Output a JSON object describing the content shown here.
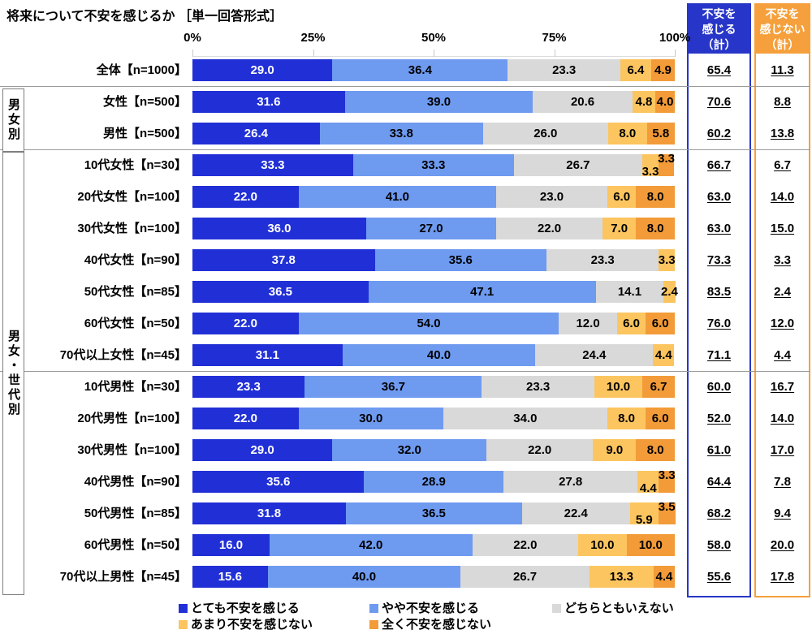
{
  "title": "将来について不安を感じるか ［単一回答形式］",
  "axis": {
    "ticks": [
      "0%",
      "25%",
      "50%",
      "75%",
      "100%"
    ]
  },
  "groups": [
    {
      "label": "男女別",
      "start_row": 1,
      "end_row": 2
    },
    {
      "label": "男女・世代別",
      "start_row": 3,
      "end_row": 16
    }
  ],
  "summary_columns": [
    {
      "header": "不安を\n感じる\n（計）",
      "color": "#2736c8",
      "key": "feel"
    },
    {
      "header": "不安を\n感じない\n（計）",
      "color": "#f5a03c",
      "key": "not_feel"
    }
  ],
  "legend": [
    {
      "label": "とても不安を感じる",
      "color": "#2130d6"
    },
    {
      "label": "やや不安を感じる",
      "color": "#6e9af0"
    },
    {
      "label": "どちらともいえない",
      "color": "#d9d9d9"
    },
    {
      "label": "あまり不安を感じない",
      "color": "#fcc55f"
    },
    {
      "label": "全く不安を感じない",
      "color": "#f29b38"
    }
  ],
  "chart_data": {
    "type": "bar",
    "stacked": true,
    "orientation": "horizontal",
    "unit": "%",
    "xlim": [
      0,
      100
    ],
    "x_ticks": [
      0,
      25,
      50,
      75,
      100
    ],
    "categories": [
      "全体【n=1000】",
      "女性【n=500】",
      "男性【n=500】",
      "10代女性【n=30】",
      "20代女性【n=100】",
      "30代女性【n=100】",
      "40代女性【n=90】",
      "50代女性【n=85】",
      "60代女性【n=50】",
      "70代以上女性【n=45】",
      "10代男性【n=30】",
      "20代男性【n=100】",
      "30代男性【n=100】",
      "40代男性【n=90】",
      "50代男性【n=85】",
      "60代男性【n=50】",
      "70代以上男性【n=45】"
    ],
    "series": [
      {
        "name": "とても不安を感じる",
        "color": "#2130d6",
        "label_color": "#ffffff",
        "values": [
          29.0,
          31.6,
          26.4,
          33.3,
          22.0,
          36.0,
          37.8,
          36.5,
          22.0,
          31.1,
          23.3,
          22.0,
          29.0,
          35.6,
          31.8,
          16.0,
          15.6
        ]
      },
      {
        "name": "やや不安を感じる",
        "color": "#6e9af0",
        "label_color": "#000000",
        "values": [
          36.4,
          39.0,
          33.8,
          33.3,
          41.0,
          27.0,
          35.6,
          47.1,
          54.0,
          40.0,
          36.7,
          30.0,
          32.0,
          28.9,
          36.5,
          42.0,
          40.0
        ]
      },
      {
        "name": "どちらともいえない",
        "color": "#d9d9d9",
        "label_color": "#000000",
        "values": [
          23.3,
          20.6,
          26.0,
          26.7,
          23.0,
          22.0,
          23.3,
          14.1,
          12.0,
          24.4,
          23.3,
          34.0,
          22.0,
          27.8,
          22.4,
          22.0,
          26.7
        ]
      },
      {
        "name": "あまり不安を感じない",
        "color": "#fcc55f",
        "label_color": "#000000",
        "values": [
          6.4,
          4.8,
          8.0,
          3.3,
          6.0,
          7.0,
          3.3,
          2.4,
          6.0,
          4.4,
          10.0,
          8.0,
          9.0,
          4.4,
          5.9,
          10.0,
          13.3
        ]
      },
      {
        "name": "全く不安を感じない",
        "color": "#f29b38",
        "label_color": "#000000",
        "values": [
          4.9,
          4.0,
          5.8,
          3.3,
          8.0,
          8.0,
          0,
          0,
          6.0,
          0,
          6.7,
          6.0,
          8.0,
          3.3,
          3.5,
          10.0,
          4.4
        ]
      }
    ],
    "totals": {
      "feel": [
        65.4,
        70.6,
        60.2,
        66.7,
        63.0,
        63.0,
        73.3,
        83.5,
        76.0,
        71.1,
        60.0,
        52.0,
        61.0,
        64.4,
        68.2,
        58.0,
        55.6
      ],
      "not_feel": [
        11.3,
        8.8,
        13.8,
        6.7,
        14.0,
        15.0,
        3.3,
        2.4,
        12.0,
        4.4,
        16.7,
        14.0,
        17.0,
        7.8,
        9.4,
        20.0,
        17.8
      ]
    },
    "stagger_label_rows": [
      3,
      13,
      14
    ],
    "group_separators_after_rows": [
      0,
      2,
      9
    ],
    "legend_position": "bottom",
    "grid": false
  }
}
